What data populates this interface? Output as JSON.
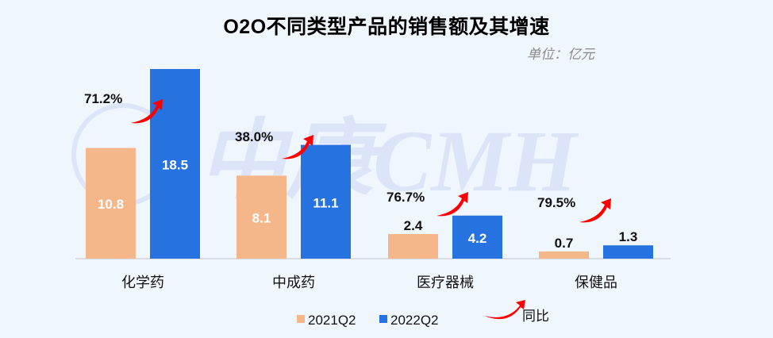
{
  "chart_data": {
    "type": "bar",
    "title": "O2O不同类型产品的销售额及其增速",
    "unit": "单位：亿元",
    "categories": [
      "化学药",
      "中成药",
      "医疗器械",
      "保健品"
    ],
    "series": [
      {
        "name": "2021Q2",
        "color": "#f5b68a",
        "values": [
          10.8,
          8.1,
          2.4,
          0.7
        ]
      },
      {
        "name": "2022Q2",
        "color": "#2672e0",
        "values": [
          18.5,
          11.1,
          4.2,
          1.3
        ]
      }
    ],
    "growth": {
      "name": "同比",
      "color": "#ff0000",
      "values": [
        "71.2%",
        "38.0%",
        "76.7%",
        "79.5%"
      ]
    },
    "ylim": [
      0,
      19
    ],
    "grid": false,
    "legend": "bottom",
    "watermark": "中康CMH"
  }
}
